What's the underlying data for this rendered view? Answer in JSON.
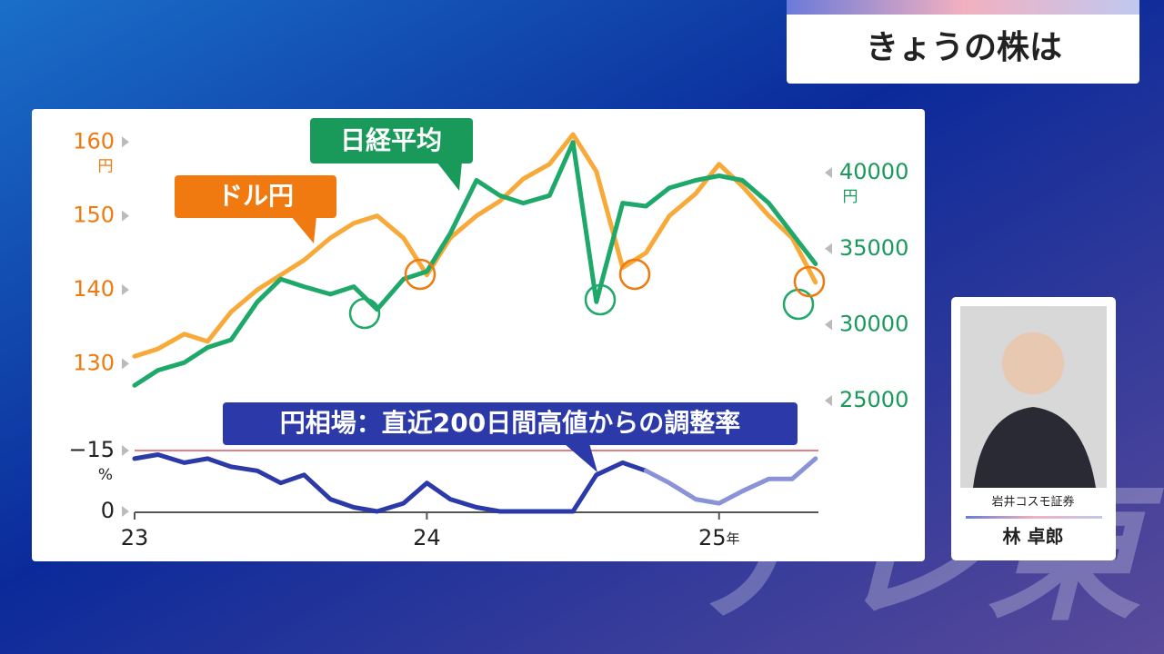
{
  "header": {
    "title": "きょうの株は"
  },
  "guest": {
    "company": "岩井コスモ証券",
    "name": "林 卓郎"
  },
  "watermark": "テレ東",
  "chart_data": [
    {
      "type": "line",
      "x": [
        23,
        23.08,
        23.17,
        23.25,
        23.33,
        23.42,
        23.5,
        23.58,
        23.67,
        23.75,
        23.83,
        23.92,
        24,
        24.08,
        24.17,
        24.25,
        24.33,
        24.42,
        24.5,
        24.58,
        24.67,
        24.75,
        24.83,
        24.92,
        25,
        25.08,
        25.17,
        25.25,
        25.33
      ],
      "xlim": [
        23,
        25.34
      ],
      "series": [
        {
          "name": "ドル円",
          "color": "#f7a93a",
          "label_color": "#f07a10",
          "values": [
            131,
            132,
            134,
            133,
            137,
            140,
            142,
            144,
            147,
            149,
            150,
            147,
            142,
            147,
            150,
            152,
            155,
            157,
            161,
            156,
            143,
            145,
            150,
            153,
            157,
            154,
            150,
            147,
            141
          ]
        },
        {
          "name": "日経平均",
          "color": "#1ea86a",
          "label_color": "#1a9a5a",
          "axis": "y2",
          "values": [
            26000,
            27000,
            27500,
            28500,
            29000,
            31500,
            33000,
            32500,
            32000,
            32500,
            31000,
            33000,
            33500,
            36000,
            39500,
            38500,
            38000,
            38500,
            42000,
            31500,
            38000,
            37800,
            39000,
            39500,
            39800,
            39500,
            38000,
            36000,
            34000
          ]
        }
      ],
      "ylim": [
        125,
        162
      ],
      "yticks": [
        130,
        140,
        150,
        160
      ],
      "y_unit": "円",
      "y2lim": [
        25000,
        43000
      ],
      "y2ticks": [
        25000,
        30000,
        35000,
        40000
      ],
      "y2_unit": "円"
    },
    {
      "type": "line",
      "title": "円相場：直近200日間高値からの調整率",
      "x": [
        23,
        23.08,
        23.17,
        23.25,
        23.33,
        23.42,
        23.5,
        23.58,
        23.67,
        23.75,
        23.83,
        23.92,
        24,
        24.08,
        24.17,
        24.25,
        24.33,
        24.42,
        24.5,
        24.58,
        24.67,
        24.75,
        24.83,
        24.92,
        25,
        25.08,
        25.17,
        25.25,
        25.33
      ],
      "xlim": [
        23,
        25.34
      ],
      "xticks": [
        23,
        24,
        {
          "value": 25,
          "label": "25年"
        }
      ],
      "series": [
        {
          "color": "#2b3aa8",
          "values": [
            -13,
            -14,
            -12,
            -13,
            -11,
            -10,
            -7,
            -9,
            -3,
            -1,
            0,
            -2,
            -7,
            -3,
            -1,
            0,
            0,
            0,
            0,
            -9,
            -12,
            -10,
            null,
            null,
            null,
            null,
            null,
            null,
            null
          ]
        },
        {
          "color": "#8a92d8",
          "values": [
            null,
            null,
            null,
            null,
            null,
            null,
            null,
            null,
            null,
            null,
            null,
            null,
            null,
            null,
            null,
            null,
            null,
            null,
            null,
            null,
            null,
            -10,
            -7,
            -3,
            -2,
            -5,
            -8,
            -8,
            -13
          ]
        }
      ],
      "ylim": [
        0,
        -15
      ],
      "yticks": [
        {
          "value": -15,
          "label": "−15"
        },
        0
      ],
      "y_unit": "%",
      "reference_line": {
        "value": -15,
        "color": "#e05060"
      }
    }
  ]
}
